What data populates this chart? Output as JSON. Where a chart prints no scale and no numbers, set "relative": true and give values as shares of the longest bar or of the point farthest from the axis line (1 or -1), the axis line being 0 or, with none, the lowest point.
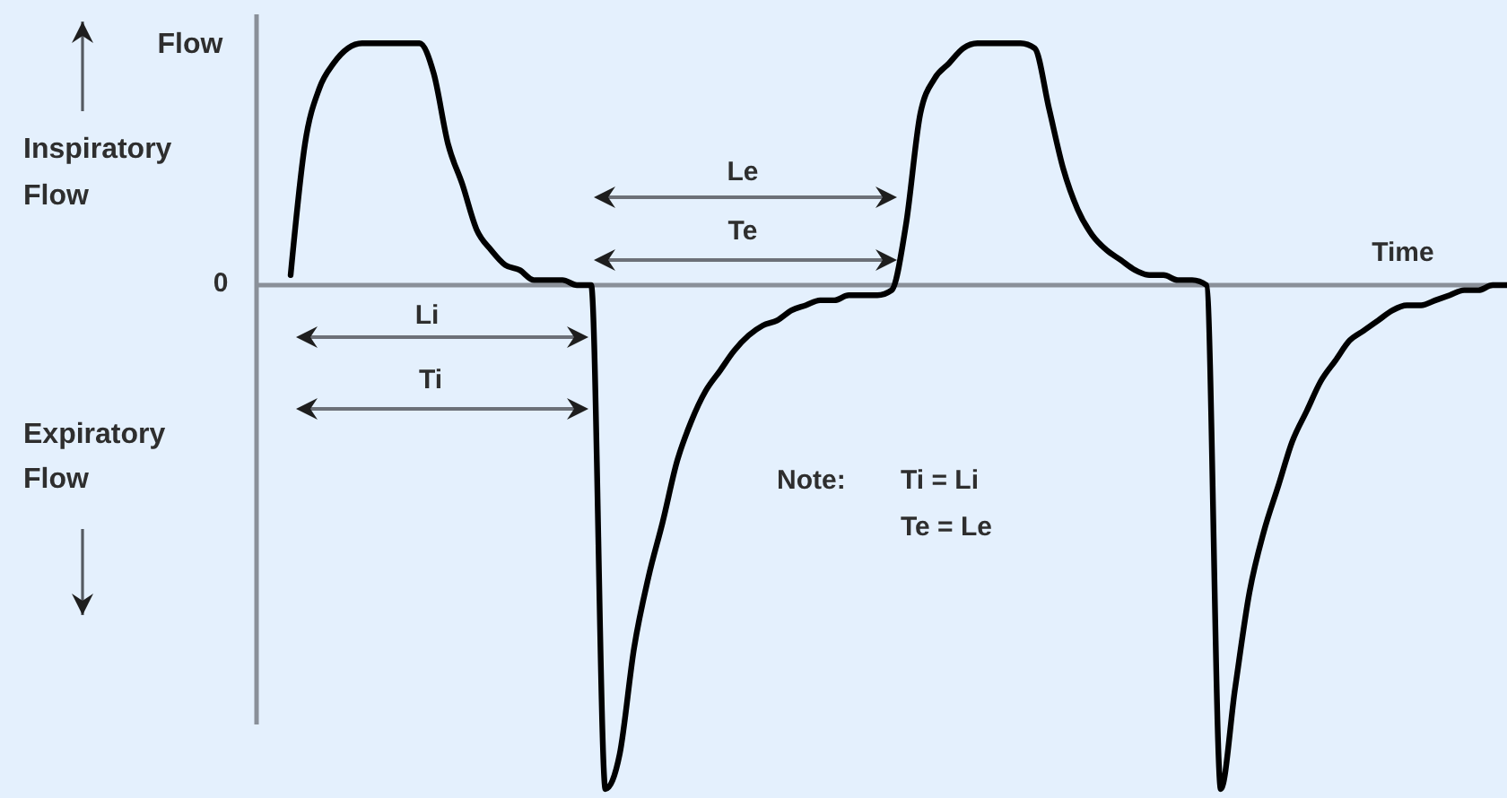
{
  "chart_data": {
    "type": "line",
    "relative": true,
    "ylabel": "Flow",
    "xlabel": "Time",
    "categories": [
      null,
      null,
      null,
      null,
      null,
      null,
      null,
      null,
      null,
      null,
      null,
      null,
      null,
      null,
      null,
      null,
      null,
      null,
      null,
      null,
      null,
      null,
      null,
      null,
      null,
      null,
      null,
      null,
      null,
      null,
      null,
      null,
      null,
      null,
      null,
      null,
      null,
      null,
      null,
      null,
      null,
      null,
      null,
      null,
      null,
      null,
      null,
      null,
      null,
      null,
      null,
      null,
      null,
      null,
      null,
      null,
      null,
      null,
      null,
      null,
      null,
      null,
      null,
      null,
      null,
      null,
      null,
      null,
      null,
      null,
      null,
      null,
      null,
      null,
      null,
      null,
      null,
      null,
      null,
      null,
      null,
      null,
      null,
      null,
      null,
      null
    ],
    "color": "#000000",
    "values": [
      0.02,
      0.28,
      0.39,
      0.44,
      0.47,
      0.48,
      0.48,
      0.48,
      0.48,
      0.48,
      0.42,
      0.28,
      0.2,
      0.11,
      0.07,
      0.04,
      0.03,
      0.01,
      0.01,
      0.01,
      0,
      0,
      -1,
      -0.93,
      -0.72,
      -0.58,
      -0.47,
      -0.35,
      -0.27,
      -0.21,
      -0.17,
      -0.13,
      -0.1,
      -0.08,
      -0.07,
      -0.05,
      -0.04,
      -0.03,
      -0.03,
      -0.02,
      -0.02,
      -0.02,
      -0.01,
      0.12,
      0.34,
      0.41,
      0.44,
      0.47,
      0.48,
      0.48,
      0.48,
      0.48,
      0.47,
      0.35,
      0.23,
      0.15,
      0.1,
      0.07,
      0.05,
      0.03,
      0.02,
      0.02,
      0.01,
      0.01,
      0,
      -1,
      -0.8,
      -0.61,
      -0.49,
      -0.4,
      -0.31,
      -0.25,
      -0.19,
      -0.15,
      -0.11,
      -0.09,
      -0.07,
      -0.05,
      -0.04,
      -0.04,
      -0.03,
      -0.02,
      -0.01,
      -0.01,
      0,
      0
    ],
    "annotations": [
      "0",
      "Inspiratory Flow",
      "Expiratory Flow",
      "Li",
      "Ti",
      "Le",
      "Te",
      "Note:",
      "Ti = Li",
      "Te = Le"
    ]
  }
}
